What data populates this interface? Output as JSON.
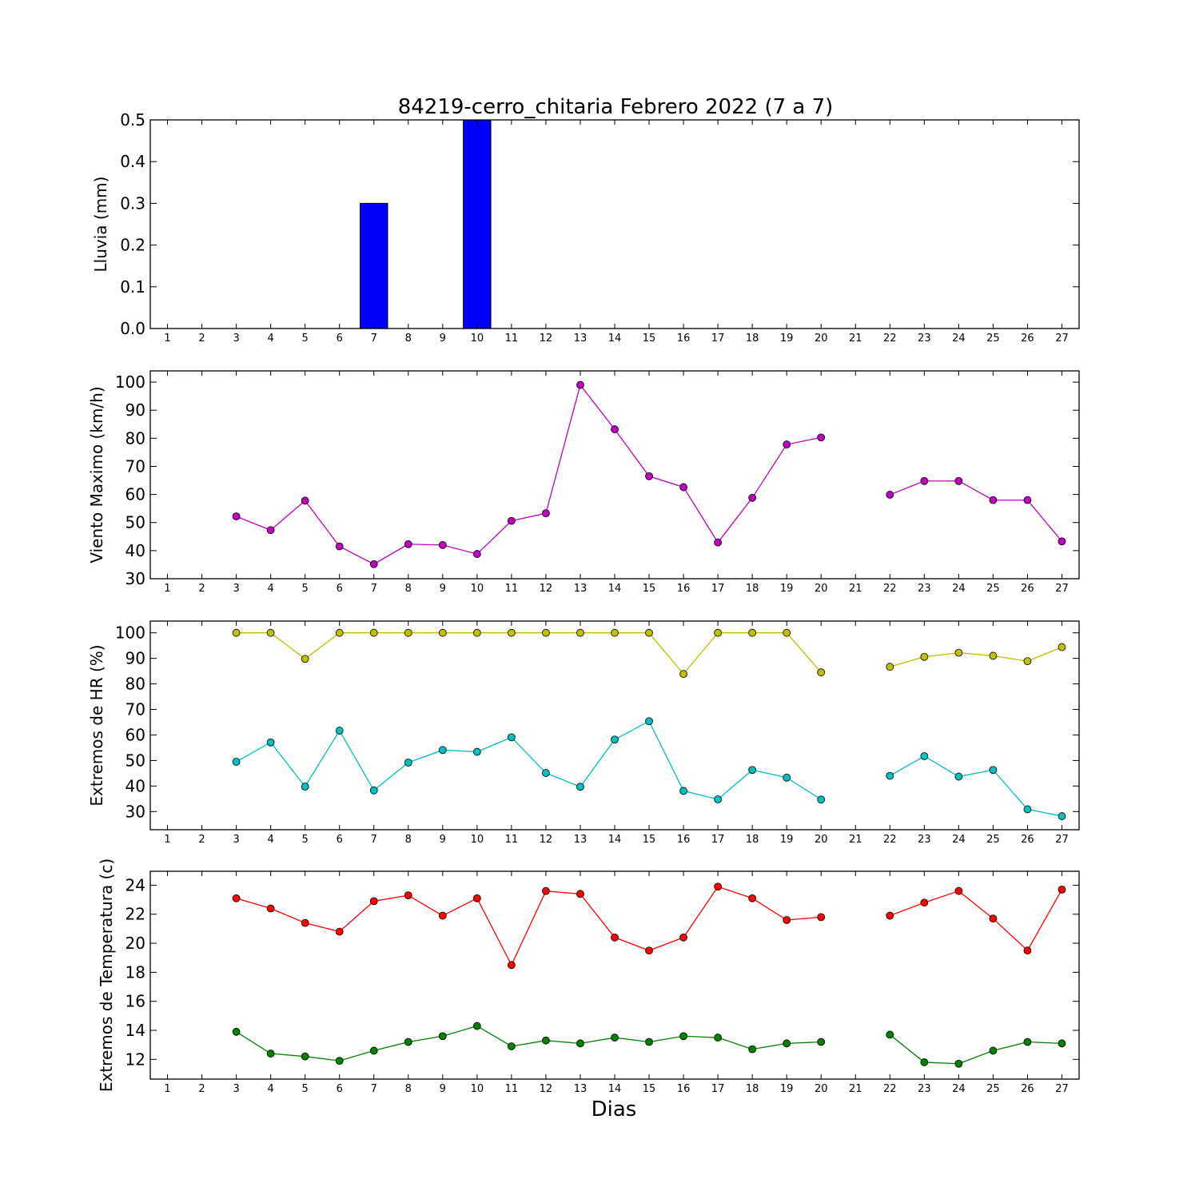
{
  "figure": {
    "title": "84219-cerro_chitaria Febrero 2022  (7 a 7)",
    "xlabel": "Dias"
  },
  "chart_data": [
    {
      "type": "bar",
      "ylabel": "Lluvia (mm)",
      "categories": [
        1,
        2,
        3,
        4,
        5,
        6,
        7,
        8,
        9,
        10,
        11,
        12,
        13,
        14,
        15,
        16,
        17,
        18,
        19,
        20,
        21,
        22,
        23,
        24,
        25,
        26,
        27
      ],
      "values": [
        null,
        null,
        0,
        0,
        0,
        0,
        0.3,
        0,
        0,
        0.5,
        0,
        0,
        0,
        0,
        0,
        0,
        0,
        0,
        0,
        0,
        null,
        0,
        0,
        0,
        0,
        0,
        0
      ],
      "xlim": [
        0.5,
        27.5
      ],
      "ylim": [
        0,
        0.5
      ],
      "yticks": [
        0.0,
        0.1,
        0.2,
        0.3,
        0.4,
        0.5
      ],
      "ytick_labels": [
        "0.0",
        "0.1",
        "0.2",
        "0.3",
        "0.4",
        "0.5"
      ],
      "bar_color": "#0000ff",
      "grid": false
    },
    {
      "type": "line",
      "ylabel": "Viento Maximo (km/h)",
      "x": [
        1,
        2,
        3,
        4,
        5,
        6,
        7,
        8,
        9,
        10,
        11,
        12,
        13,
        14,
        15,
        16,
        17,
        18,
        19,
        20,
        21,
        22,
        23,
        24,
        25,
        26,
        27
      ],
      "series": [
        {
          "color": "#bf00bf",
          "values": [
            null,
            null,
            52.2,
            47.3,
            57.8,
            41.5,
            35.2,
            42.3,
            42.0,
            38.8,
            50.6,
            53.3,
            99.0,
            83.2,
            66.5,
            62.6,
            42.9,
            58.8,
            77.8,
            80.3,
            null,
            59.9,
            64.8,
            64.8,
            58.0,
            58.0,
            43.3
          ]
        }
      ],
      "xlim": [
        0.5,
        27.5
      ],
      "ylim": [
        30,
        104
      ],
      "yticks": [
        30,
        40,
        50,
        60,
        70,
        80,
        90,
        100
      ],
      "ytick_labels": [
        "30",
        "40",
        "50",
        "60",
        "70",
        "80",
        "90",
        "100"
      ],
      "grid": false
    },
    {
      "type": "line",
      "ylabel": "Extremos de HR (%)",
      "x": [
        1,
        2,
        3,
        4,
        5,
        6,
        7,
        8,
        9,
        10,
        11,
        12,
        13,
        14,
        15,
        16,
        17,
        18,
        19,
        20,
        21,
        22,
        23,
        24,
        25,
        26,
        27
      ],
      "series": [
        {
          "color": "#bfbf00",
          "values": [
            null,
            null,
            100,
            100,
            89.8,
            100,
            100,
            100,
            100,
            100,
            100,
            100,
            100,
            100,
            100,
            83.9,
            100,
            100,
            100,
            84.5,
            null,
            86.7,
            90.6,
            92.2,
            91.0,
            88.9,
            94.4
          ]
        },
        {
          "color": "#00bfbf",
          "values": [
            null,
            null,
            49.5,
            57.1,
            39.8,
            61.7,
            38.3,
            49.2,
            54.1,
            53.4,
            59.1,
            45.1,
            39.7,
            58.2,
            65.4,
            38.1,
            34.8,
            46.3,
            43.3,
            34.7,
            null,
            44.0,
            51.7,
            43.7,
            46.3,
            30.9,
            28.2
          ]
        }
      ],
      "xlim": [
        0.5,
        27.5
      ],
      "ylim": [
        22.9,
        104.6
      ],
      "yticks": [
        30,
        40,
        50,
        60,
        70,
        80,
        90,
        100
      ],
      "ytick_labels": [
        "30",
        "40",
        "50",
        "60",
        "70",
        "80",
        "90",
        "100"
      ],
      "grid": false
    },
    {
      "type": "line",
      "ylabel": "Extremos de Temperatura (c)",
      "x": [
        1,
        2,
        3,
        4,
        5,
        6,
        7,
        8,
        9,
        10,
        11,
        12,
        13,
        14,
        15,
        16,
        17,
        18,
        19,
        20,
        21,
        22,
        23,
        24,
        25,
        26,
        27
      ],
      "series": [
        {
          "color": "#ff0000",
          "values": [
            null,
            null,
            23.1,
            22.4,
            21.4,
            20.8,
            22.9,
            23.3,
            21.9,
            23.1,
            18.5,
            23.6,
            23.4,
            20.4,
            19.5,
            20.4,
            23.9,
            23.1,
            21.6,
            21.8,
            null,
            21.9,
            22.8,
            23.6,
            21.7,
            19.5,
            23.7
          ]
        },
        {
          "color": "#008000",
          "values": [
            null,
            null,
            13.9,
            12.4,
            12.2,
            11.9,
            12.6,
            13.2,
            13.6,
            14.3,
            12.9,
            13.3,
            13.1,
            13.5,
            13.2,
            13.6,
            13.5,
            12.7,
            13.1,
            13.2,
            null,
            13.7,
            11.8,
            11.7,
            12.6,
            13.2,
            13.1
          ]
        }
      ],
      "xlim": [
        0.5,
        27.5
      ],
      "ylim": [
        10.64,
        24.96
      ],
      "yticks": [
        12,
        14,
        16,
        18,
        20,
        22,
        24
      ],
      "ytick_labels": [
        "12",
        "14",
        "16",
        "18",
        "20",
        "22",
        "24"
      ],
      "grid": false
    }
  ]
}
